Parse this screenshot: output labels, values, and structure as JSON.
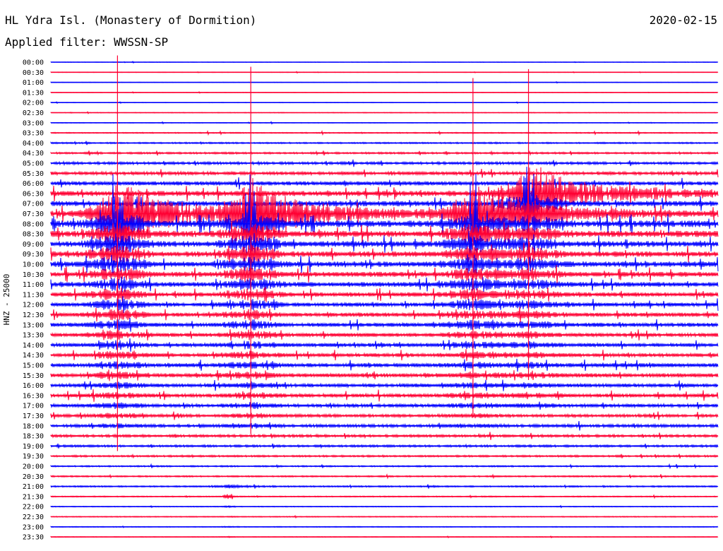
{
  "header": {
    "station": "HL Ydra Isl. (Monastery of Dormition)",
    "filter": "Applied filter: WWSSN-SP",
    "date": "2020-02-15",
    "channel_label": "HNZ - 25000"
  },
  "colors": {
    "blue": "#0000ff",
    "red": "#ff0033"
  },
  "chart_data": {
    "type": "line",
    "title": "HL Ydra Isl. (Monastery of Dormition)",
    "subtitle": "Applied filter: WWSSN-SP",
    "ylabel": "HNZ - 25000",
    "date": "2020-02-15",
    "rows": [
      "00:00",
      "00:30",
      "01:00",
      "01:30",
      "02:00",
      "02:30",
      "03:00",
      "03:30",
      "04:00",
      "04:30",
      "05:00",
      "05:30",
      "06:00",
      "06:30",
      "07:00",
      "07:30",
      "08:00",
      "08:30",
      "09:00",
      "09:30",
      "10:00",
      "10:30",
      "11:00",
      "11:30",
      "12:00",
      "12:30",
      "13:00",
      "13:30",
      "14:00",
      "14:30",
      "15:00",
      "15:30",
      "16:00",
      "16:30",
      "17:00",
      "17:30",
      "18:00",
      "18:30",
      "19:00",
      "19:30",
      "20:00",
      "20:30",
      "21:00",
      "21:30",
      "22:00",
      "22:30",
      "23:00",
      "23:30"
    ],
    "row_colors": [
      "blue",
      "red"
    ],
    "minutes_per_row": 30,
    "noise_profile": [
      0.3,
      0.3,
      0.3,
      0.3,
      0.3,
      0.4,
      0.4,
      0.6,
      0.8,
      1.0,
      1.4,
      1.8,
      2.2,
      2.8,
      3.0,
      3.4,
      3.6,
      3.4,
      3.2,
      3.0,
      3.0,
      2.8,
      2.6,
      2.4,
      2.2,
      2.2,
      2.2,
      2.0,
      2.0,
      2.0,
      2.2,
      2.2,
      2.0,
      2.0,
      1.8,
      1.6,
      1.6,
      1.4,
      1.2,
      1.0,
      0.8,
      0.8,
      0.8,
      0.6,
      0.5,
      0.5,
      0.5,
      0.4
    ],
    "events": [
      {
        "row": 15,
        "minute": 3.0,
        "amp": 140,
        "dur": 5
      },
      {
        "row": 15,
        "minute": 9.0,
        "amp": 130,
        "dur": 5
      },
      {
        "row": 15,
        "minute": 19.0,
        "amp": 120,
        "dur": 5
      },
      {
        "row": 13,
        "minute": 21.5,
        "amp": 110,
        "dur": 6
      },
      {
        "row": 15,
        "minute": 32.0,
        "amp": 130,
        "dur": 6
      },
      {
        "row": 15,
        "minute": 36.5,
        "amp": 140,
        "dur": 6
      },
      {
        "row": 15,
        "minute": 47.5,
        "amp": 130,
        "dur": 5
      },
      {
        "row": 15,
        "minute": 51.5,
        "amp": 110,
        "dur": 5
      },
      {
        "row": 15,
        "minute": 59.5,
        "amp": 120,
        "dur": 5
      },
      {
        "row": 15,
        "minute": 63.5,
        "amp": 140,
        "dur": 5
      },
      {
        "row": 36,
        "minute": 38.0,
        "amp": 10,
        "dur": 2
      },
      {
        "row": 37,
        "minute": 42.0,
        "amp": 9,
        "dur": 2
      },
      {
        "row": 42,
        "minute": 8.0,
        "amp": 7,
        "dur": 1.5
      },
      {
        "row": 41,
        "minute": 50.0,
        "amp": 7,
        "dur": 1.5
      }
    ]
  }
}
